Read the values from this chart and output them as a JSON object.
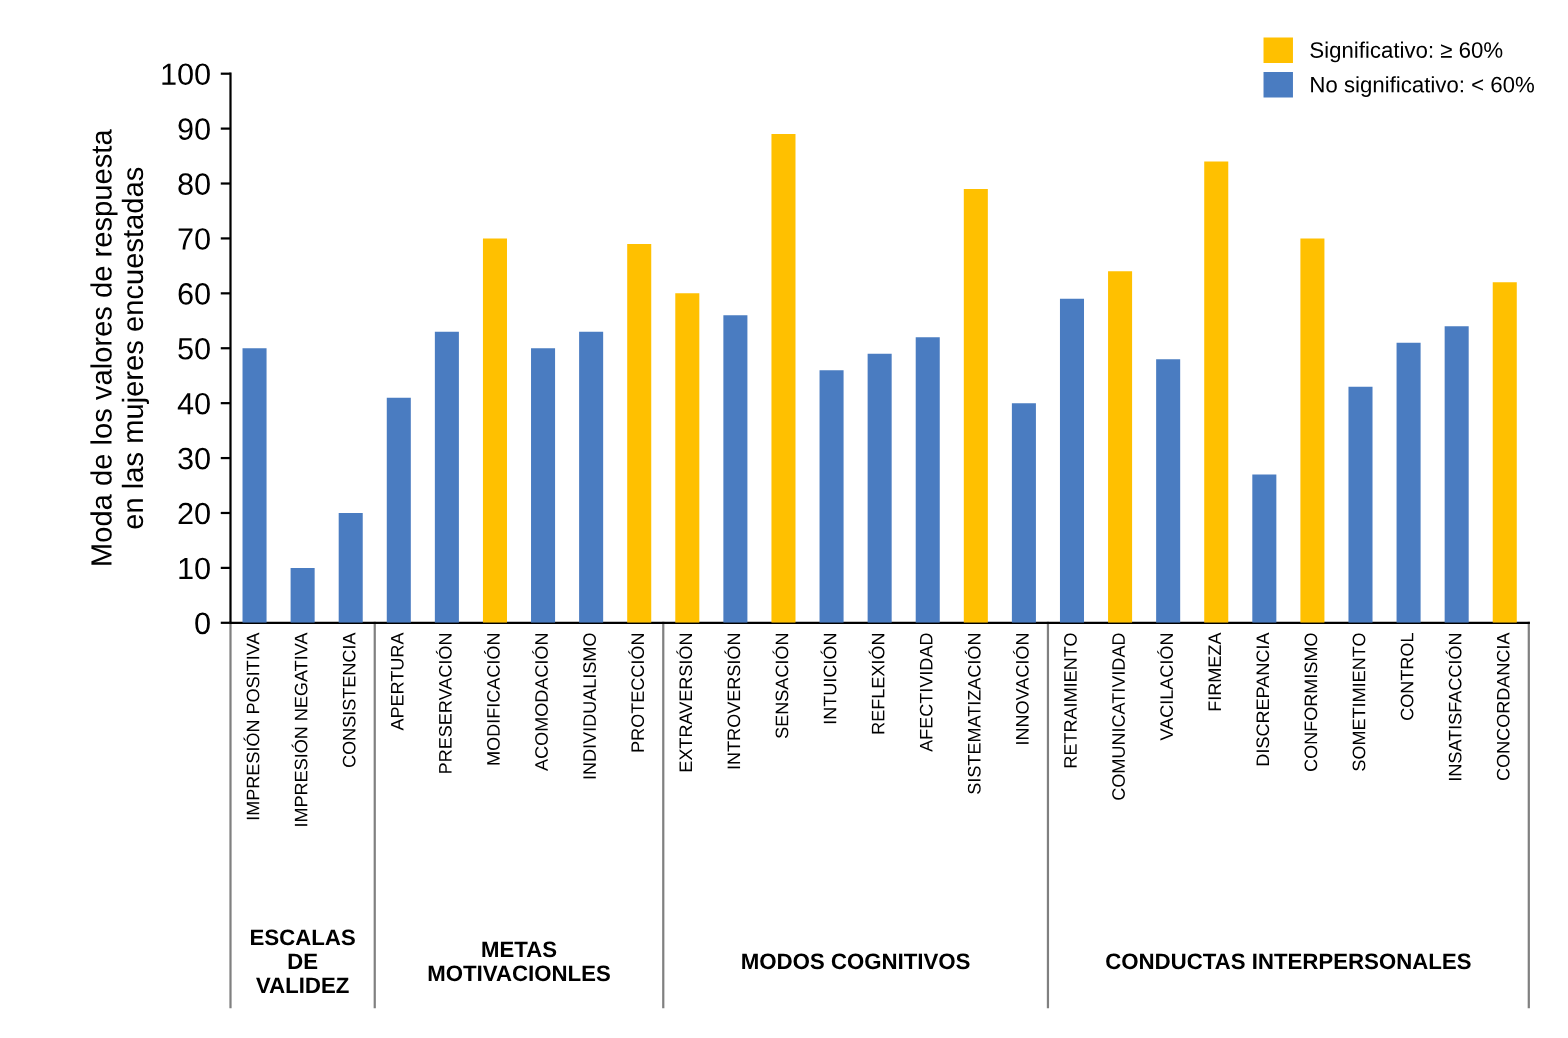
{
  "chart_data": {
    "type": "bar",
    "ylabel": "Moda de los valores de respuesta\nen las mujeres encuestadas",
    "categories": [
      "IMPRESIÓN POSITIVA",
      "IMPRESIÓN NEGATIVA",
      "CONSISTENCIA",
      "APERTURA",
      "PRESERVACIÓN",
      "MODIFICACIÓN",
      "ACOMODACIÓN",
      "INDIVIDUALISMO",
      "PROTECCIÓN",
      "EXTRAVERSIÓN",
      "INTROVERSIÓN",
      "SENSACIÓN",
      "INTUICIÓN",
      "REFLEXIÓN",
      "AFECTIVIDAD",
      "SISTEMATIZACIÓN",
      "INNOVACIÓN",
      "RETRAIMIENTO",
      "COMUNICATIVIDAD",
      "VACILACIÓN",
      "FIRMEZA",
      "DISCREPANCIA",
      "CONFORMISMO",
      "SOMETIMIENTO",
      "CONTROL",
      "INSATISFACCIÓN",
      "CONCORDANCIA"
    ],
    "series": [
      {
        "name": "Significativo: ≥ 60%",
        "color": "#ffc000",
        "values": [
          null,
          null,
          null,
          null,
          null,
          70,
          null,
          null,
          69,
          60,
          null,
          89,
          null,
          null,
          null,
          79,
          null,
          null,
          64,
          null,
          84,
          null,
          70,
          null,
          null,
          null,
          62
        ]
      },
      {
        "name": "No significativo: < 60%",
        "color": "#4a7cc1",
        "values": [
          50,
          10,
          20,
          41,
          53,
          null,
          50,
          53,
          null,
          null,
          56,
          null,
          46,
          49,
          52,
          null,
          40,
          59,
          null,
          48,
          null,
          27,
          null,
          43,
          51,
          54,
          null
        ]
      }
    ],
    "ylim": [
      0,
      100
    ],
    "yticks": [
      0,
      10,
      20,
      30,
      40,
      50,
      60,
      70,
      80,
      90,
      100
    ],
    "grid": false,
    "legend": "top right",
    "annotations": [
      "ESCALAS\nDE\nVALIDEZ",
      "METAS\nMOTIVACIONLES",
      "MODOS COGNITIVOS",
      "CONDUCTAS INTERPERSONALES"
    ]
  }
}
